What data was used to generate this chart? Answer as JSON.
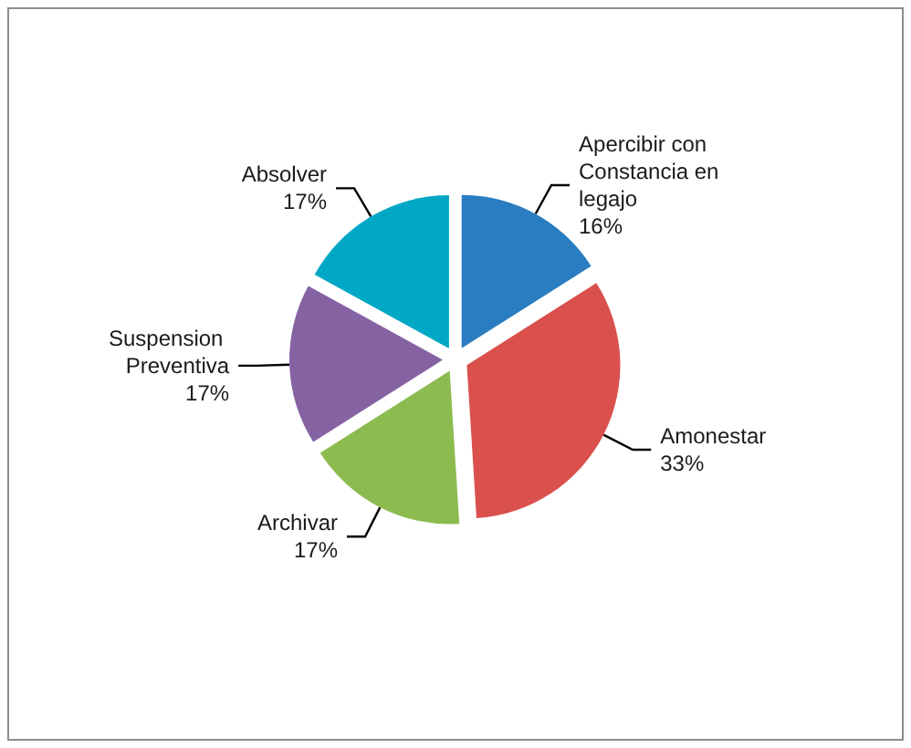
{
  "chart_data": {
    "type": "pie",
    "categories": [
      "Apercibir con Constancia en legajo",
      "Amonestar",
      "Archivar",
      "Suspension Preventiva",
      "Absolver"
    ],
    "values": [
      16,
      33,
      17,
      17,
      17
    ],
    "value_labels": [
      "16%",
      "33%",
      "17%",
      "17%",
      "17%"
    ],
    "colors": [
      "#2a7dc0",
      "#d9504c",
      "#8cbb50",
      "#8563a3",
      "#00a8c6"
    ],
    "legend": false
  }
}
